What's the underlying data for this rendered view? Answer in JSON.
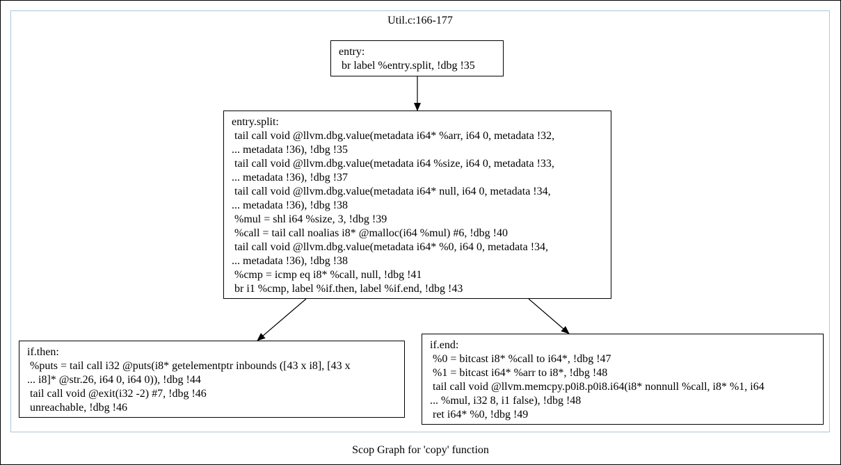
{
  "cluster": {
    "title": "Util.c:166-177"
  },
  "graph": {
    "title": "Scop Graph for 'copy' function"
  },
  "nodes": {
    "entry": {
      "lines": [
        "entry:",
        " br label %entry.split, !dbg !35"
      ]
    },
    "entry_split": {
      "lines": [
        "entry.split:",
        " tail call void @llvm.dbg.value(metadata i64* %arr, i64 0, metadata !32,",
        "... metadata !36), !dbg !35",
        " tail call void @llvm.dbg.value(metadata i64 %size, i64 0, metadata !33,",
        "... metadata !36), !dbg !37",
        " tail call void @llvm.dbg.value(metadata i64* null, i64 0, metadata !34,",
        "... metadata !36), !dbg !38",
        " %mul = shl i64 %size, 3, !dbg !39",
        " %call = tail call noalias i8* @malloc(i64 %mul) #6, !dbg !40",
        " tail call void @llvm.dbg.value(metadata i64* %0, i64 0, metadata !34,",
        "... metadata !36), !dbg !38",
        " %cmp = icmp eq i8* %call, null, !dbg !41",
        " br i1 %cmp, label %if.then, label %if.end, !dbg !43"
      ]
    },
    "if_then": {
      "lines": [
        "if.then:",
        " %puts = tail call i32 @puts(i8* getelementptr inbounds ([43 x i8], [43 x",
        "... i8]* @str.26, i64 0, i64 0)), !dbg !44",
        " tail call void @exit(i32 -2) #7, !dbg !46",
        " unreachable, !dbg !46"
      ]
    },
    "if_end": {
      "lines": [
        "if.end:",
        " %0 = bitcast i8* %call to i64*, !dbg !47",
        " %1 = bitcast i64* %arr to i8*, !dbg !48",
        " tail call void @llvm.memcpy.p0i8.p0i8.i64(i8* nonnull %call, i8* %1, i64",
        "... %mul, i32 8, i1 false), !dbg !48",
        " ret i64* %0, !dbg !49"
      ]
    }
  },
  "colors": {
    "cluster_border": "#a8c8d8",
    "node_border": "#000000",
    "edge": "#000000",
    "background": "#ffffff"
  }
}
